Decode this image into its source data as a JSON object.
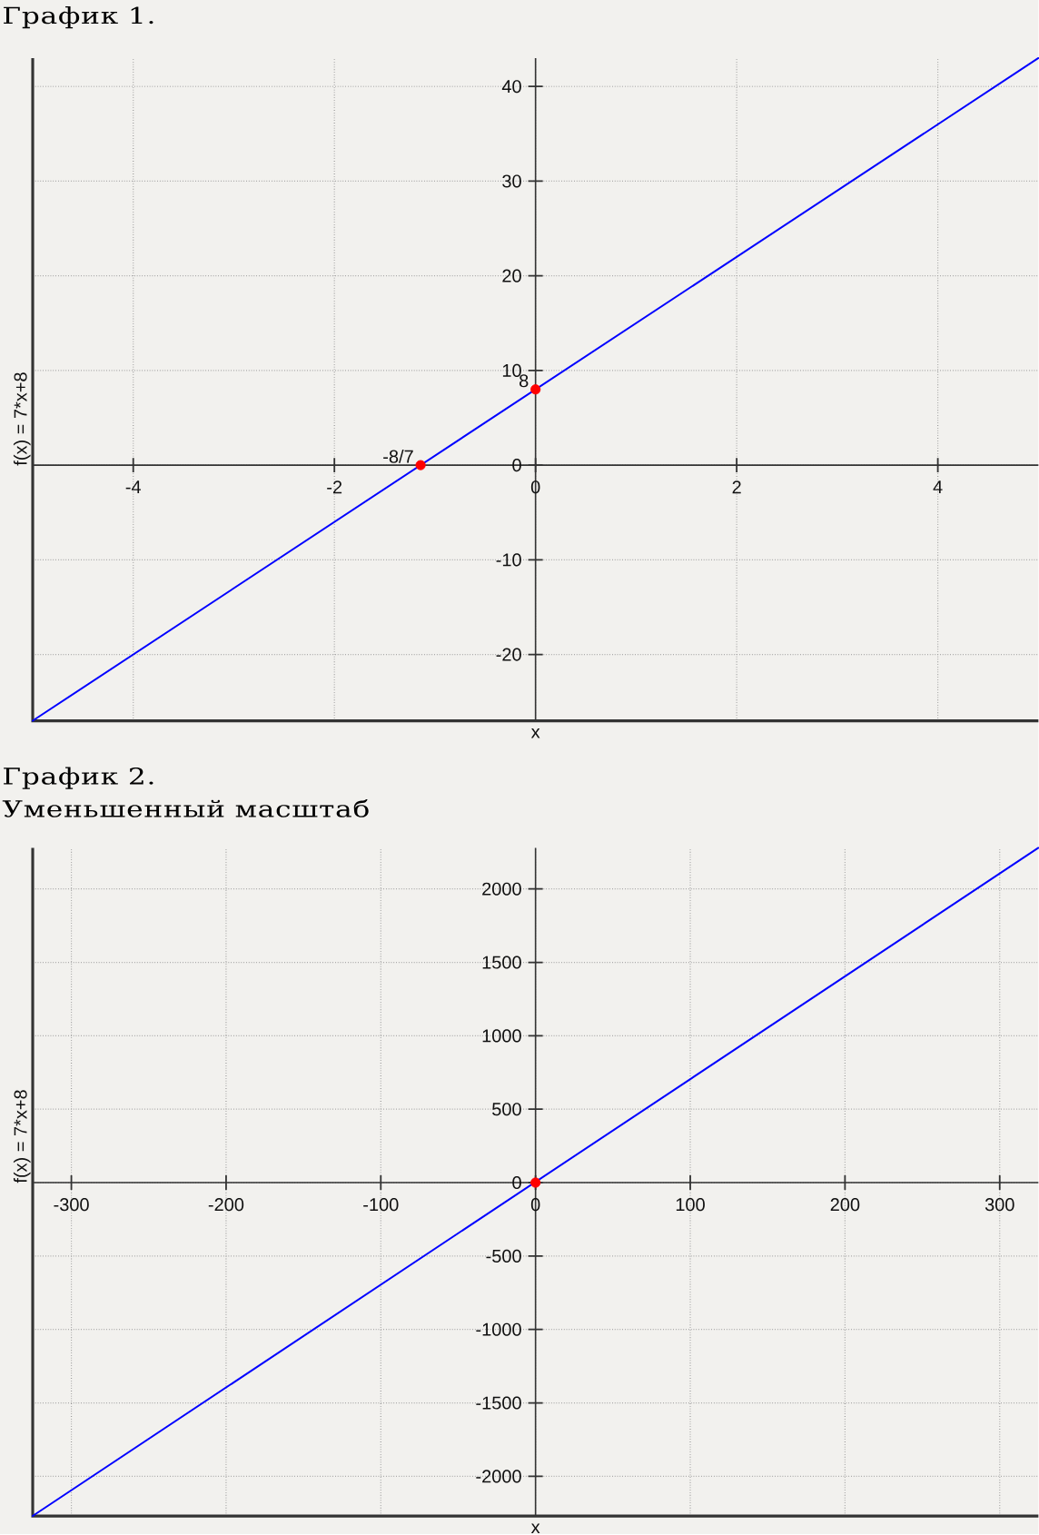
{
  "chart_data": [
    {
      "type": "line",
      "title": "График 1.",
      "xlabel": "x",
      "ylabel": "f(x) = 7*x+8",
      "xlim": [
        -5,
        5
      ],
      "ylim": [
        -27,
        43
      ],
      "xticks": [
        -4,
        -2,
        0,
        2,
        4
      ],
      "yticks": [
        -20,
        -10,
        0,
        10,
        20,
        30,
        40
      ],
      "grid": true,
      "series": [
        {
          "type": "line",
          "color": "#0000ff",
          "x": [
            -5,
            5
          ],
          "values": [
            -27,
            43
          ]
        },
        {
          "type": "scatter",
          "color": "#ff0000",
          "marker": "circle",
          "x": [
            -1.143,
            0
          ],
          "values": [
            0,
            8
          ]
        }
      ],
      "annotations": [
        {
          "text": "-8/7",
          "x": -1.143,
          "y": 0
        },
        {
          "text": "8",
          "x": 0,
          "y": 8
        }
      ]
    },
    {
      "type": "line",
      "title": "График 2.",
      "subtitle": "Уменьшенный масштаб",
      "xlabel": "x",
      "ylabel": "f(x) = 7*x+8",
      "xlim": [
        -325,
        325
      ],
      "ylim": [
        -2270,
        2280
      ],
      "xticks": [
        -300,
        -200,
        -100,
        0,
        100,
        200,
        300
      ],
      "yticks": [
        -2000,
        -1500,
        -1000,
        -500,
        0,
        500,
        1000,
        1500,
        2000
      ],
      "grid": true,
      "series": [
        {
          "type": "line",
          "color": "#0000ff",
          "x": [
            -325,
            325
          ],
          "values": [
            -2270,
            2280
          ]
        },
        {
          "type": "scatter",
          "color": "#ff0000",
          "marker": "circle",
          "x": [
            0
          ],
          "values": [
            0
          ]
        }
      ]
    }
  ]
}
